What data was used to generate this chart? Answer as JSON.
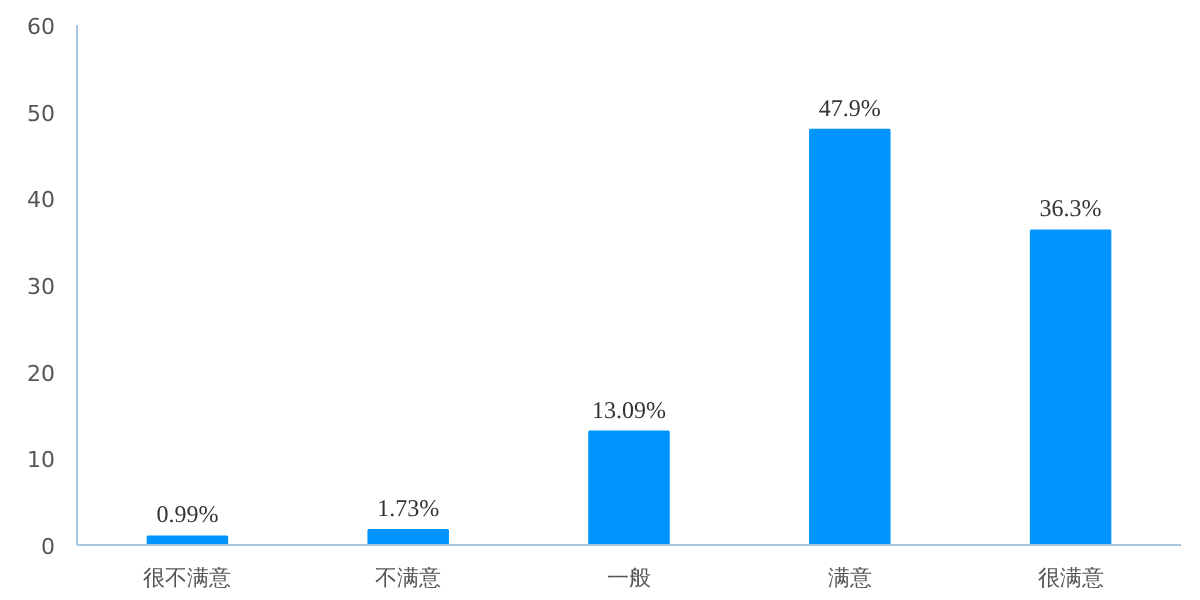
{
  "chart_data": {
    "type": "bar",
    "categories": [
      "很不满意",
      "不满意",
      "一般",
      "满意",
      "很满意"
    ],
    "values": [
      0.99,
      1.73,
      13.09,
      47.9,
      36.3
    ],
    "value_labels": [
      "0.99%",
      "1.73%",
      "13.09%",
      "47.9%",
      "36.3%"
    ],
    "color": "#0094ff",
    "ylim": [
      0,
      60
    ],
    "yticks": [
      0,
      10,
      20,
      30,
      40,
      50,
      60
    ],
    "grid": false
  }
}
